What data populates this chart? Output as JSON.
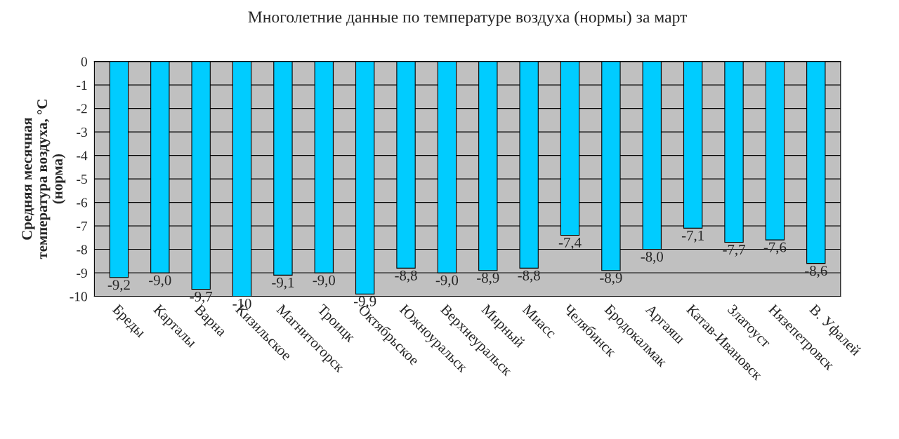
{
  "chart_data": {
    "type": "bar",
    "title": "Многолетние данные по температуре воздуха (нормы) за март",
    "ylabel": "Средняя месячная\nтемпература воздуха, °С\n(норма)",
    "categories": [
      "Бреды",
      "Карталы",
      "Варна",
      "Кизильское",
      "Магнитогорск",
      "Троицк",
      "Октябрьское",
      "Южноуральск",
      "Верхнеуральск",
      "Мирный",
      "Миасс",
      "Челябинск",
      "Бродокалмак",
      "Аргаяш",
      "Катав-Ивановск",
      "Златоуст",
      "Нязепетровск",
      "В. Уфалей"
    ],
    "values": [
      -9.2,
      -9.0,
      -9.7,
      -10,
      -9.1,
      -9.0,
      -9.9,
      -8.8,
      -9.0,
      -8.9,
      -8.8,
      -7.4,
      -8.9,
      -8.0,
      -7.1,
      -7.7,
      -7.6,
      -8.6
    ],
    "value_labels": [
      "-9,2",
      "-9,0",
      "-9,7",
      "-10",
      "-9,1",
      "-9,0",
      "-9,9",
      "-8,8",
      "-9,0",
      "-8,9",
      "-8,8",
      "-7,4",
      "-8,9",
      "-8,0",
      "-7,1",
      "-7,7",
      "-7,6",
      "-8,6"
    ],
    "color": "#00ccff",
    "ylim": [
      -10,
      0
    ],
    "yticks": [
      0,
      -1,
      -2,
      -3,
      -4,
      -5,
      -6,
      -7,
      -8,
      -9,
      -10
    ],
    "grid": "y",
    "legend": false
  }
}
